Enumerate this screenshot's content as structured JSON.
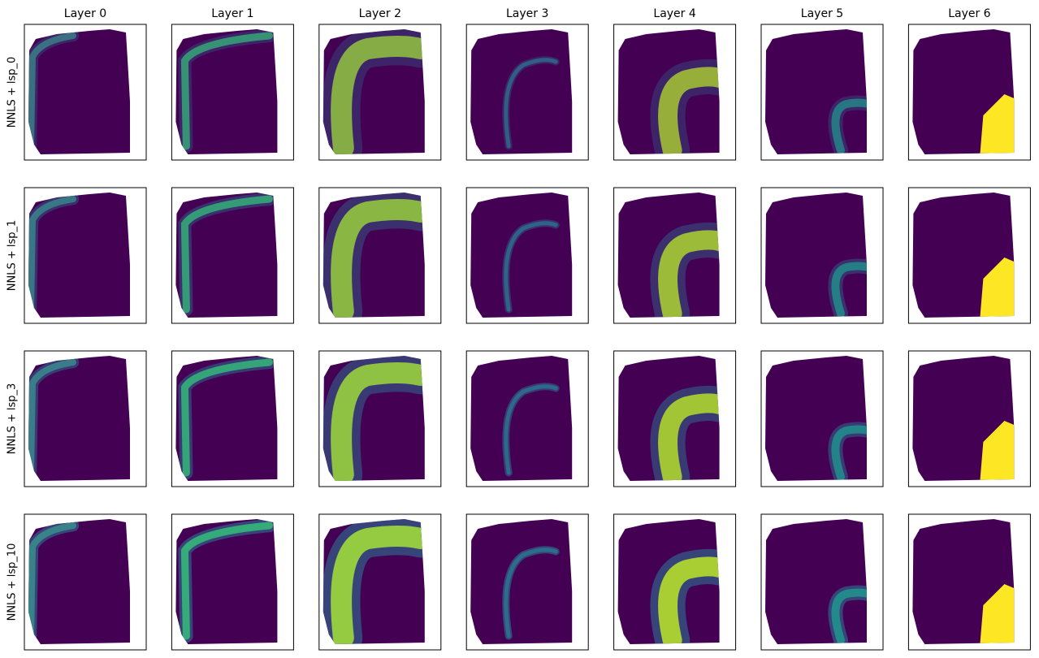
{
  "chart_data": {
    "type": "spatial-grid",
    "columns": [
      "Layer 0",
      "Layer 1",
      "Layer 2",
      "Layer 3",
      "Layer 4",
      "Layer 5",
      "Layer 6"
    ],
    "rows": [
      "NNLS + lsp_0",
      "NNLS + lsp_1",
      "NNLS + lsp_3",
      "NNLS + lsp_10"
    ]
  }
}
